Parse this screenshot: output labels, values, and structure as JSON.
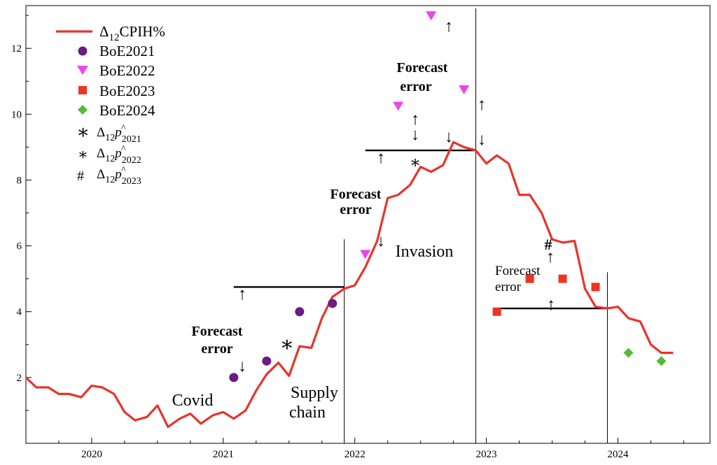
{
  "chart_data": {
    "type": "line",
    "xlim": [
      2019.5,
      2024.7
    ],
    "ylim": [
      0,
      13.3
    ],
    "x_ticks": [
      2020,
      2021,
      2022,
      2023,
      2024
    ],
    "x_tick_labels": [
      "2020",
      "2021",
      "2022",
      "2023",
      "2024"
    ],
    "y_ticks": [
      2,
      4,
      6,
      8,
      10,
      12
    ],
    "y_tick_labels": [
      "2",
      "4",
      "6",
      "8",
      "10",
      "12"
    ],
    "legend_position": "top-left",
    "colors": {
      "cpih": "#e8332c",
      "boe2021": "#6b1c82",
      "boe2022": "#ee44ee",
      "boe2023": "#ee3322",
      "boe2024": "#55bb33"
    },
    "series": [
      {
        "name": "Δ12CPIH%",
        "legend_main": "Δ",
        "legend_sub": "12",
        "legend_rest": "CPIH%",
        "x": [
          2019.5,
          2019.58,
          2019.67,
          2019.75,
          2019.83,
          2019.92,
          2020.0,
          2020.08,
          2020.17,
          2020.25,
          2020.33,
          2020.42,
          2020.5,
          2020.58,
          2020.67,
          2020.75,
          2020.83,
          2020.92,
          2021.0,
          2021.08,
          2021.17,
          2021.25,
          2021.33,
          2021.42,
          2021.5,
          2021.58,
          2021.67,
          2021.75,
          2021.83,
          2021.92,
          2022.0,
          2022.08,
          2022.17,
          2022.25,
          2022.33,
          2022.42,
          2022.5,
          2022.58,
          2022.67,
          2022.75,
          2022.83,
          2022.92,
          2023.0,
          2023.08,
          2023.17,
          2023.25,
          2023.33,
          2023.42,
          2023.5,
          2023.58,
          2023.67,
          2023.75,
          2023.83,
          2023.92,
          2024.0,
          2024.08,
          2024.17,
          2024.25,
          2024.33,
          2024.42
        ],
        "y": [
          2.0,
          1.7,
          1.7,
          1.5,
          1.5,
          1.4,
          1.75,
          1.7,
          1.5,
          0.95,
          0.7,
          0.8,
          1.15,
          0.5,
          0.75,
          0.9,
          0.6,
          0.85,
          0.95,
          0.75,
          1.0,
          1.6,
          2.1,
          2.45,
          2.05,
          2.95,
          2.9,
          3.8,
          4.45,
          4.7,
          4.8,
          5.35,
          6.15,
          7.45,
          7.55,
          7.85,
          8.4,
          8.25,
          8.45,
          9.15,
          9.0,
          8.9,
          8.5,
          8.75,
          8.5,
          7.55,
          7.55,
          7.0,
          6.2,
          6.1,
          6.15,
          4.7,
          4.15,
          4.1,
          4.15,
          3.8,
          3.7,
          3.0,
          2.75,
          2.75
        ]
      },
      {
        "name": "BoE2021",
        "x": [
          2021.08,
          2021.33,
          2021.58,
          2021.83
        ],
        "y": [
          2.0,
          2.5,
          4.0,
          4.25
        ]
      },
      {
        "name": "BoE2022",
        "x": [
          2022.08,
          2022.33,
          2022.58,
          2022.83
        ],
        "y": [
          5.75,
          10.25,
          13.0,
          10.75
        ]
      },
      {
        "name": "BoE2023",
        "x": [
          2023.08,
          2023.33,
          2023.58,
          2023.83
        ],
        "y": [
          4.0,
          5.0,
          5.0,
          4.75
        ]
      },
      {
        "name": "BoE2024",
        "x": [
          2024.08,
          2024.33
        ],
        "y": [
          2.75,
          2.5
        ]
      }
    ],
    "legend": {
      "cpih": {
        "main": "Δ",
        "sub": "12",
        "rest": "CPIH%"
      },
      "boe2021": "BoE2021",
      "boe2022": "BoE2022",
      "boe2023": "BoE2023",
      "boe2024": "BoE2024",
      "p2021": {
        "symbol": "∗",
        "main": "Δ",
        "sub": "12",
        "p": "p",
        "hat": "^",
        "year": "2021"
      },
      "p2022": {
        "symbol": "∗",
        "main": "Δ",
        "sub": "12",
        "p": "p",
        "hat": "^",
        "year": "2022"
      },
      "p2023": {
        "symbol": "#",
        "main": "Δ",
        "sub": "12",
        "p": "p",
        "hat": "^",
        "year": "2023"
      }
    },
    "annotations": {
      "forecast_error_1_line1": "Forecast",
      "forecast_error_1_line2": "error",
      "forecast_error_2_line1": "Forecast",
      "forecast_error_2_line2": "error",
      "forecast_error_3_line1": "Forecast",
      "forecast_error_3_line2": "error",
      "forecast_error_4_line1": "Forecast",
      "forecast_error_4_line2": "error",
      "covid": "Covid",
      "supply_line1": "Supply",
      "supply_line2": "chain",
      "invasion": "Invasion",
      "star_big": "∗",
      "star_small": "∗",
      "hash": "#",
      "arrow_down": "↓",
      "arrow_up": "↑",
      "arrow_updown": "↕"
    },
    "vertical_lines_x": [
      2021.92,
      2022.92,
      2023.92
    ],
    "forecast_levels": [
      {
        "x_start": 2021.08,
        "x_end": 2021.92,
        "y": 4.75
      },
      {
        "x_start": 2022.08,
        "x_end": 2022.92,
        "y": 8.9
      },
      {
        "x_start": 2023.08,
        "x_end": 2023.92,
        "y": 4.1
      }
    ]
  }
}
